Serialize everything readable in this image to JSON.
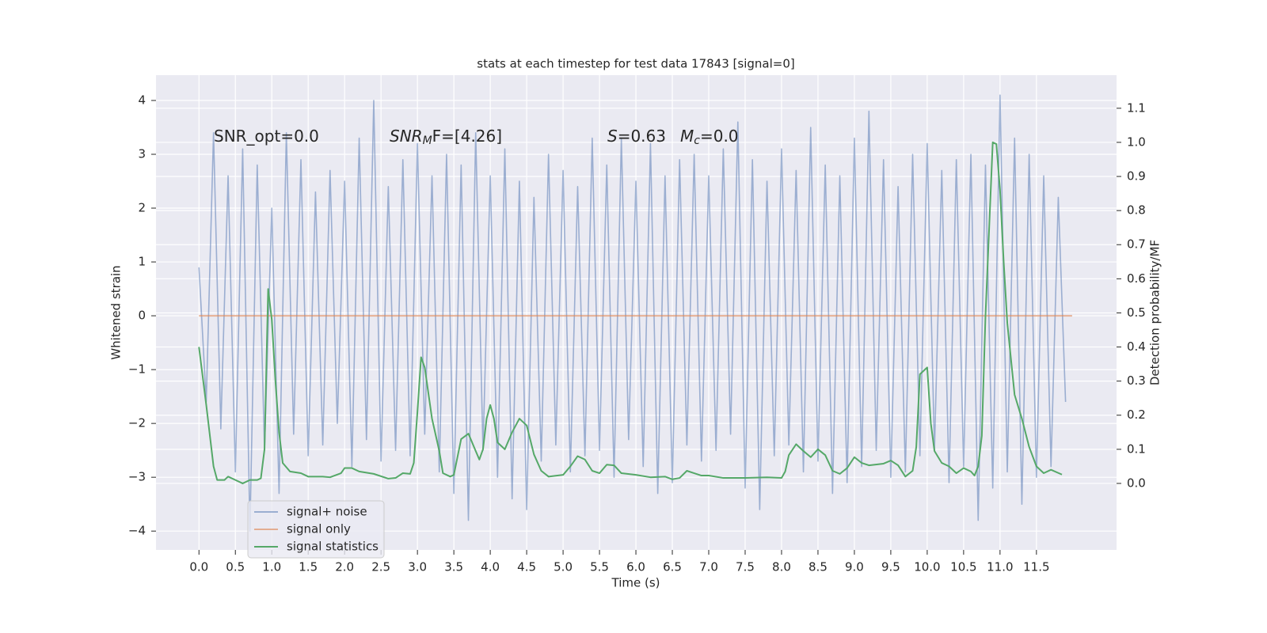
{
  "chart_data": {
    "type": "line",
    "title": "stats at each timestep for test data 17843 [signal=0]",
    "xlabel": "Time (s)",
    "ylabel": "Whitened strain",
    "y2label": "Detection probability/MF",
    "xlim": [
      -0.59,
      12.6
    ],
    "ylim": [
      -4.35,
      4.47
    ],
    "y2lim": [
      -0.195,
      1.197
    ],
    "xticks": [
      {
        "value": 0,
        "label": "0.0"
      },
      {
        "value": 0.5,
        "label": "0.5"
      },
      {
        "value": 1,
        "label": "1.0"
      },
      {
        "value": 1.5,
        "label": "1.5"
      },
      {
        "value": 2,
        "label": "2.0"
      },
      {
        "value": 2.5,
        "label": "2.5"
      },
      {
        "value": 3,
        "label": "3.0"
      },
      {
        "value": 3.5,
        "label": "3.5"
      },
      {
        "value": 4,
        "label": "4.0"
      },
      {
        "value": 4.5,
        "label": "4.5"
      },
      {
        "value": 5,
        "label": "5.0"
      },
      {
        "value": 5.5,
        "label": "5.5"
      },
      {
        "value": 6,
        "label": "6.0"
      },
      {
        "value": 6.5,
        "label": "6.5"
      },
      {
        "value": 7,
        "label": "7.0"
      },
      {
        "value": 7.5,
        "label": "7.5"
      },
      {
        "value": 8,
        "label": "8.0"
      },
      {
        "value": 8.5,
        "label": "8.5"
      },
      {
        "value": 9,
        "label": "9.0"
      },
      {
        "value": 9.5,
        "label": "9.5"
      },
      {
        "value": 10,
        "label": "10.0"
      },
      {
        "value": 10.5,
        "label": "10.5"
      },
      {
        "value": 11,
        "label": "11.0"
      },
      {
        "value": 11.5,
        "label": "11.5"
      }
    ],
    "yticks": [
      {
        "value": -4,
        "label": "−4"
      },
      {
        "value": -3,
        "label": "−3"
      },
      {
        "value": -2,
        "label": "−2"
      },
      {
        "value": -1,
        "label": "−1"
      },
      0,
      1,
      2,
      3,
      4
    ],
    "y2ticks": [
      {
        "value": 0,
        "label": "0.0"
      },
      {
        "value": 0.1,
        "label": "0.1"
      },
      {
        "value": 0.2,
        "label": "0.2"
      },
      {
        "value": 0.3,
        "label": "0.3"
      },
      {
        "value": 0.4,
        "label": "0.4"
      },
      {
        "value": 0.5,
        "label": "0.5"
      },
      {
        "value": 0.6,
        "label": "0.6"
      },
      {
        "value": 0.7,
        "label": "0.7"
      },
      {
        "value": 0.8,
        "label": "0.8"
      },
      {
        "value": 0.9,
        "label": "0.9"
      },
      {
        "value": 1,
        "label": "1.0"
      },
      {
        "value": 1.1,
        "label": "1.1"
      }
    ],
    "grid": true,
    "legend": "lower left",
    "annotations": [
      [
        {
          "text": "SNR_opt=0.0"
        }
      ],
      [
        {
          "text": "SNR",
          "italic": true
        },
        {
          "text": "M",
          "italic": true,
          "sub": true
        },
        {
          "text": "F=[4.26]"
        }
      ],
      [
        {
          "text": "S",
          "italic": true
        },
        {
          "text": "=0.63"
        }
      ],
      [
        {
          "text": "M",
          "italic": true
        },
        {
          "text": "c",
          "italic": true,
          "sub": true
        },
        {
          "text": "=0.0"
        }
      ]
    ],
    "series": [
      {
        "name": "signal+ noise",
        "color": "#4c72b0",
        "opacity": 0.5,
        "x": [
          0,
          0.1,
          0.2,
          0.3,
          0.4,
          0.5,
          0.6,
          0.7,
          0.8,
          0.9,
          1,
          1.1,
          1.2,
          1.3,
          1.4,
          1.5,
          1.6,
          1.7,
          1.8,
          1.9,
          2,
          2.1,
          2.2,
          2.3,
          2.4,
          2.5,
          2.6,
          2.7,
          2.8,
          2.9,
          3,
          3.1,
          3.2,
          3.3,
          3.4,
          3.5,
          3.6,
          3.7,
          3.8,
          3.9,
          4,
          4.1,
          4.2,
          4.3,
          4.4,
          4.5,
          4.6,
          4.7,
          4.8,
          4.9,
          5,
          5.1,
          5.2,
          5.3,
          5.4,
          5.5,
          5.6,
          5.7,
          5.8,
          5.9,
          6,
          6.1,
          6.2,
          6.3,
          6.4,
          6.5,
          6.6,
          6.7,
          6.8,
          6.9,
          7,
          7.1,
          7.2,
          7.3,
          7.4,
          7.5,
          7.6,
          7.7,
          7.8,
          7.9,
          8,
          8.1,
          8.2,
          8.3,
          8.4,
          8.5,
          8.6,
          8.7,
          8.8,
          8.9,
          9,
          9.1,
          9.2,
          9.3,
          9.4,
          9.5,
          9.6,
          9.7,
          9.8,
          9.9,
          10,
          10.1,
          10.2,
          10.3,
          10.4,
          10.5,
          10.6,
          10.7,
          10.8,
          10.9,
          11,
          11.1,
          11.2,
          11.3,
          11.4,
          11.5,
          11.6,
          11.7,
          11.8,
          11.9
        ],
        "values": [
          0.9,
          -1.6,
          3.4,
          -2.1,
          2.6,
          -2.9,
          3.1,
          -4.0,
          2.8,
          -2.5,
          2.0,
          -3.3,
          3.4,
          -2.2,
          2.9,
          -2.6,
          2.3,
          -2.4,
          2.7,
          -2.0,
          2.5,
          -2.8,
          3.3,
          -2.3,
          4.0,
          -2.7,
          2.4,
          -2.5,
          2.9,
          -2.6,
          3.2,
          -2.2,
          2.6,
          -2.9,
          3.0,
          -3.3,
          2.8,
          -3.8,
          3.4,
          -2.5,
          2.6,
          -3.0,
          3.1,
          -3.4,
          2.5,
          -3.6,
          2.2,
          -2.7,
          3.0,
          -2.4,
          2.7,
          -2.9,
          2.4,
          -2.6,
          3.3,
          -2.5,
          2.8,
          -3.0,
          3.3,
          -2.3,
          2.5,
          -2.8,
          3.2,
          -3.3,
          2.6,
          -3.1,
          2.9,
          -2.4,
          3.0,
          -2.7,
          2.6,
          -2.5,
          3.1,
          -2.2,
          3.6,
          -3.2,
          2.9,
          -3.6,
          2.5,
          -2.6,
          3.1,
          -2.4,
          2.7,
          -2.9,
          3.5,
          -2.7,
          2.8,
          -3.3,
          2.6,
          -3.1,
          3.3,
          -2.8,
          3.8,
          -2.5,
          2.9,
          -3.0,
          2.4,
          -2.9,
          3.0,
          -2.6,
          3.2,
          -2.5,
          2.7,
          -3.1,
          2.9,
          -2.8,
          3.0,
          -3.8,
          2.8,
          -3.2,
          4.1,
          -2.9,
          3.3,
          -3.5,
          3.0,
          -3.0,
          2.6,
          -2.8,
          2.2,
          -1.6
        ]
      },
      {
        "name": "signal only",
        "color": "#dd8452",
        "opacity": 0.6,
        "x": [
          0,
          11.99
        ],
        "values": [
          0,
          0
        ]
      },
      {
        "name": "signal statistics",
        "color": "#55a868",
        "opacity": 1,
        "axis": "y2",
        "x": [
          0,
          0.1,
          0.2,
          0.25,
          0.35,
          0.4,
          0.5,
          0.6,
          0.7,
          0.8,
          0.85,
          0.9,
          0.95,
          1,
          1.05,
          1.1,
          1.15,
          1.25,
          1.4,
          1.5,
          1.7,
          1.8,
          1.95,
          2,
          2.1,
          2.2,
          2.4,
          2.6,
          2.7,
          2.8,
          2.9,
          2.95,
          3,
          3.05,
          3.1,
          3.2,
          3.3,
          3.35,
          3.45,
          3.5,
          3.6,
          3.7,
          3.8,
          3.85,
          3.9,
          3.95,
          4,
          4.05,
          4.1,
          4.2,
          4.3,
          4.4,
          4.5,
          4.6,
          4.7,
          4.8,
          5,
          5.1,
          5.2,
          5.3,
          5.4,
          5.5,
          5.6,
          5.7,
          5.8,
          6,
          6.2,
          6.4,
          6.5,
          6.6,
          6.7,
          6.8,
          6.9,
          7,
          7.2,
          7.5,
          7.8,
          8,
          8.05,
          8.1,
          8.2,
          8.3,
          8.4,
          8.5,
          8.6,
          8.7,
          8.8,
          8.9,
          9,
          9.1,
          9.2,
          9.4,
          9.5,
          9.6,
          9.7,
          9.8,
          9.85,
          9.9,
          10,
          10.05,
          10.1,
          10.2,
          10.3,
          10.4,
          10.5,
          10.6,
          10.65,
          10.7,
          10.75,
          10.8,
          10.9,
          10.95,
          11,
          11.05,
          11.1,
          11.2,
          11.3,
          11.4,
          11.5,
          11.6,
          11.7,
          11.85
        ],
        "values": [
          0.4,
          0.23,
          0.05,
          0.01,
          0.01,
          0.02,
          0.01,
          0.0,
          0.01,
          0.01,
          0.015,
          0.1,
          0.57,
          0.48,
          0.3,
          0.15,
          0.06,
          0.035,
          0.03,
          0.02,
          0.02,
          0.018,
          0.03,
          0.045,
          0.045,
          0.035,
          0.028,
          0.014,
          0.016,
          0.03,
          0.028,
          0.06,
          0.21,
          0.37,
          0.34,
          0.19,
          0.095,
          0.03,
          0.02,
          0.025,
          0.13,
          0.146,
          0.095,
          0.07,
          0.1,
          0.19,
          0.23,
          0.19,
          0.12,
          0.1,
          0.15,
          0.19,
          0.17,
          0.085,
          0.037,
          0.02,
          0.025,
          0.05,
          0.08,
          0.07,
          0.037,
          0.03,
          0.055,
          0.053,
          0.03,
          0.025,
          0.018,
          0.02,
          0.012,
          0.016,
          0.037,
          0.03,
          0.023,
          0.023,
          0.016,
          0.016,
          0.018,
          0.016,
          0.035,
          0.083,
          0.115,
          0.095,
          0.077,
          0.1,
          0.083,
          0.037,
          0.028,
          0.045,
          0.077,
          0.06,
          0.053,
          0.058,
          0.067,
          0.053,
          0.02,
          0.037,
          0.107,
          0.32,
          0.34,
          0.176,
          0.095,
          0.06,
          0.05,
          0.03,
          0.045,
          0.035,
          0.023,
          0.05,
          0.14,
          0.49,
          1.0,
          0.995,
          0.86,
          0.65,
          0.47,
          0.26,
          0.19,
          0.107,
          0.05,
          0.03,
          0.04,
          0.026
        ]
      }
    ]
  }
}
